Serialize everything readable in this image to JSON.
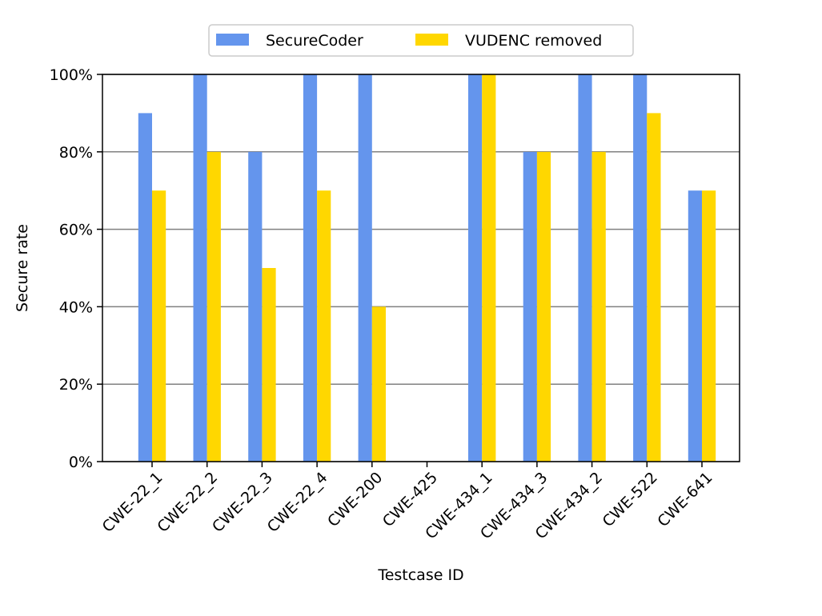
{
  "chart_data": {
    "type": "bar",
    "xlabel": "Testcase ID",
    "ylabel": "Secure rate",
    "ylim": [
      0,
      100
    ],
    "yticks": [
      "0%",
      "20%",
      "40%",
      "60%",
      "80%",
      "100%"
    ],
    "grid": "horizontal",
    "legend_position": "top-center",
    "categories": [
      "CWE-22_1",
      "CWE-22_2",
      "CWE-22_3",
      "CWE-22_4",
      "CWE-200",
      "CWE-425",
      "CWE-434_1",
      "CWE-434_3",
      "CWE-434_2",
      "CWE-522",
      "CWE-641"
    ],
    "series": [
      {
        "name": "SecureCoder",
        "color": "#6495ED",
        "values": [
          90,
          100,
          80,
          100,
          100,
          0,
          100,
          80,
          100,
          100,
          70
        ]
      },
      {
        "name": "VUDENC removed",
        "color": "#FFD700",
        "values": [
          70,
          80,
          50,
          70,
          40,
          0,
          100,
          80,
          80,
          90,
          70
        ]
      }
    ]
  }
}
